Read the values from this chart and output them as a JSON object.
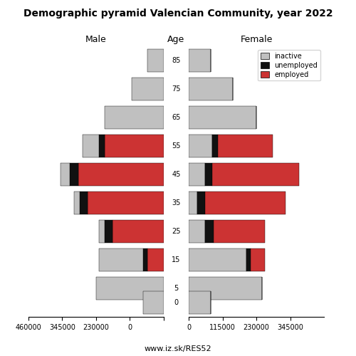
{
  "title": "Demographic pyramid Valencian Community, year 2022",
  "age_labels": [
    "85",
    "75",
    "65",
    "55",
    "45",
    "35",
    "25",
    "15",
    "5",
    "0"
  ],
  "age_ticks": [
    85,
    75,
    65,
    55,
    45,
    35,
    25,
    15,
    5,
    0
  ],
  "male": {
    "inactive": [
      55000,
      110000,
      200000,
      55000,
      30000,
      20000,
      20000,
      150000,
      230000,
      70000
    ],
    "unemployed": [
      0,
      0,
      0,
      20000,
      30000,
      25000,
      25000,
      15000,
      0,
      0
    ],
    "employed": [
      0,
      0,
      0,
      200000,
      290000,
      260000,
      175000,
      55000,
      0,
      0
    ]
  },
  "female": {
    "inactive": [
      75000,
      150000,
      230000,
      80000,
      55000,
      30000,
      55000,
      195000,
      250000,
      75000
    ],
    "unemployed": [
      0,
      0,
      0,
      20000,
      25000,
      25000,
      30000,
      15000,
      0,
      0
    ],
    "employed": [
      0,
      0,
      0,
      185000,
      295000,
      275000,
      175000,
      50000,
      0,
      0
    ]
  },
  "colors": {
    "inactive": "#c0c0c0",
    "unemployed": "#111111",
    "employed": "#cc3333"
  },
  "xlabel_left": "Male",
  "xlabel_right": "Female",
  "xlabel_center": "Age",
  "footer": "www.iz.sk/RES52",
  "xlim_left": 460000,
  "xlim_right": 460000,
  "bar_height": 0.8
}
